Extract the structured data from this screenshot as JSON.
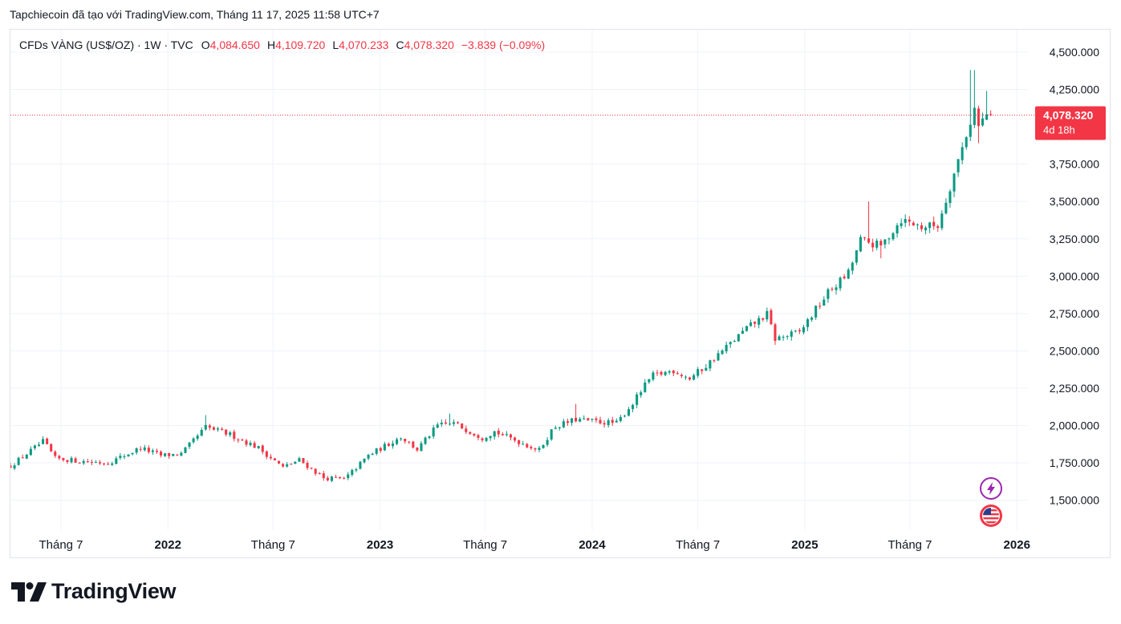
{
  "caption": "Tapchiecoin đã tạo với TradingView.com, Tháng 11 17, 2025 11:58 UTC+7",
  "legend": {
    "symbol": "CFDs VÀNG (US$/OZ) · 1W · TVC",
    "o_label": "O",
    "o_value": "4,084.650",
    "h_label": "H",
    "h_value": "4,109.720",
    "l_label": "L",
    "l_value": "4,070.233",
    "c_label": "C",
    "c_value": "4,078.320",
    "change": "−3.839 (−0.09%)"
  },
  "price_tag": {
    "price": "4,078.320",
    "countdown": "4d 18h"
  },
  "brand": {
    "name": "TradingView"
  },
  "colors": {
    "up": "#089981",
    "down": "#f23645",
    "grid": "#f0f3fa",
    "axis_text": "#131722",
    "price_line": "#f23645"
  },
  "icons": [
    "lightning-icon",
    "us-flag-icon"
  ],
  "chart_data": {
    "type": "candlestick",
    "title": "CFDs VÀNG (US$/OZ) · 1W · TVC",
    "interval": "1W",
    "ylim": [
      1300,
      4650
    ],
    "yticks": [
      1500,
      1750,
      2000,
      2250,
      2500,
      2750,
      3000,
      3250,
      3500,
      3750,
      4250,
      4500
    ],
    "ytick_labels": [
      "1,500.000",
      "1,750.000",
      "2,000.000",
      "2,250.000",
      "2,500.000",
      "2,750.000",
      "3,000.000",
      "3,250.000",
      "3,500.000",
      "3,750.000",
      "4,250.000",
      "4,500.000"
    ],
    "x_start": "2021-04-05",
    "x_end": "2026-01-20",
    "xticks": [
      {
        "date": "2021-07-01",
        "label": "Tháng 7",
        "bold": false
      },
      {
        "date": "2022-01-01",
        "label": "2022",
        "bold": true
      },
      {
        "date": "2022-07-01",
        "label": "Tháng 7",
        "bold": false
      },
      {
        "date": "2023-01-01",
        "label": "2023",
        "bold": true
      },
      {
        "date": "2023-07-01",
        "label": "Tháng 7",
        "bold": false
      },
      {
        "date": "2024-01-01",
        "label": "2024",
        "bold": true
      },
      {
        "date": "2024-07-01",
        "label": "Tháng 7",
        "bold": false
      },
      {
        "date": "2025-01-01",
        "label": "2025",
        "bold": true
      },
      {
        "date": "2025-07-01",
        "label": "Tháng 7",
        "bold": false
      },
      {
        "date": "2026-01-01",
        "label": "2026",
        "bold": true
      }
    ],
    "last_price": 4078.32,
    "anchor_closes": [
      [
        "2021-04-05",
        1730
      ],
      [
        "2021-06-01",
        1895
      ],
      [
        "2021-06-21",
        1780
      ],
      [
        "2021-08-09",
        1760
      ],
      [
        "2021-09-20",
        1750
      ],
      [
        "2021-11-15",
        1850
      ],
      [
        "2021-12-20",
        1800
      ],
      [
        "2022-01-24",
        1810
      ],
      [
        "2022-03-07",
        1990
      ],
      [
        "2022-04-18",
        1940
      ],
      [
        "2022-06-06",
        1850
      ],
      [
        "2022-07-18",
        1720
      ],
      [
        "2022-08-15",
        1770
      ],
      [
        "2022-09-26",
        1650
      ],
      [
        "2022-11-01",
        1640
      ],
      [
        "2022-12-12",
        1800
      ],
      [
        "2023-02-06",
        1925
      ],
      [
        "2023-03-06",
        1840
      ],
      [
        "2023-04-10",
        2000
      ],
      [
        "2023-05-08",
        2015
      ],
      [
        "2023-06-26",
        1920
      ],
      [
        "2023-07-17",
        1960
      ],
      [
        "2023-10-02",
        1835
      ],
      [
        "2023-10-27",
        1990
      ],
      [
        "2023-12-04",
        2040
      ],
      [
        "2024-02-12",
        2015
      ],
      [
        "2024-03-11",
        2150
      ],
      [
        "2024-04-12",
        2330
      ],
      [
        "2024-05-20",
        2370
      ],
      [
        "2024-06-17",
        2315
      ],
      [
        "2024-07-15",
        2400
      ],
      [
        "2024-09-23",
        2650
      ],
      [
        "2024-10-28",
        2745
      ],
      [
        "2024-11-11",
        2580
      ],
      [
        "2024-12-23",
        2625
      ],
      [
        "2025-02-10",
        2890
      ],
      [
        "2025-03-17",
        3020
      ],
      [
        "2025-04-07",
        3240
      ],
      [
        "2025-05-12",
        3200
      ],
      [
        "2025-06-16",
        3380
      ],
      [
        "2025-07-21",
        3330
      ],
      [
        "2025-08-18",
        3340
      ],
      [
        "2025-09-08",
        3600
      ],
      [
        "2025-10-06",
        3950
      ],
      [
        "2025-10-20",
        4120
      ],
      [
        "2025-10-27",
        4000
      ],
      [
        "2025-11-10",
        4085
      ],
      [
        "2025-11-17",
        4078.32
      ]
    ],
    "notable_spikes": [
      [
        "2022-03-07",
        2070,
        "high"
      ],
      [
        "2023-05-01",
        2080,
        "high"
      ],
      [
        "2023-12-04",
        2145,
        "high"
      ],
      [
        "2024-11-11",
        2540,
        "low"
      ],
      [
        "2025-04-21",
        3500,
        "high"
      ],
      [
        "2025-05-12",
        3120,
        "low"
      ],
      [
        "2025-10-13",
        4380,
        "high"
      ],
      [
        "2025-10-20",
        4380,
        "high"
      ],
      [
        "2025-10-27",
        3890,
        "low"
      ],
      [
        "2025-11-10",
        4240,
        "high"
      ]
    ],
    "last_bar": {
      "open": 4084.65,
      "high": 4109.72,
      "low": 4070.233,
      "close": 4078.32
    }
  }
}
